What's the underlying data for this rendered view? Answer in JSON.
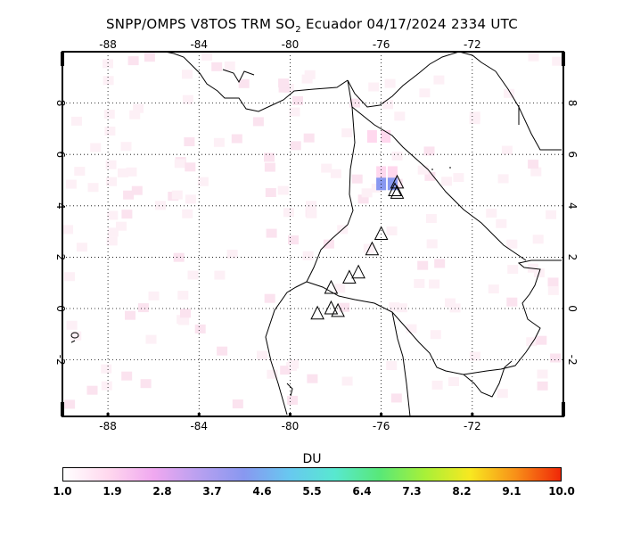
{
  "title": {
    "prefix": "SNPP/OMPS V8TOS TRM SO",
    "sub": "2",
    "suffix": " Ecuador 04/17/2024 2334 UTC"
  },
  "map": {
    "region": "Ecuador",
    "lon_range": [
      -90,
      -68
    ],
    "lat_range": [
      -4.2,
      10
    ],
    "lon_ticks": [
      "-88",
      "-84",
      "-80",
      "-76",
      "-72"
    ],
    "lat_ticks": [
      "8",
      "6",
      "4",
      "2",
      "0",
      "-2"
    ],
    "grid": true,
    "volcano_icon": "triangle-icon",
    "volcanoes": [
      {
        "lon": -75.3,
        "lat": 4.9
      },
      {
        "lon": -75.4,
        "lat": 4.6
      },
      {
        "lon": -75.3,
        "lat": 4.5
      },
      {
        "lon": -76.0,
        "lat": 2.9
      },
      {
        "lon": -76.4,
        "lat": 2.3
      },
      {
        "lon": -77.0,
        "lat": 1.4
      },
      {
        "lon": -77.4,
        "lat": 1.2
      },
      {
        "lon": -78.2,
        "lat": 0.8
      },
      {
        "lon": -78.2,
        "lat": -0.0
      },
      {
        "lon": -77.9,
        "lat": -0.1
      },
      {
        "lon": -78.8,
        "lat": -0.2
      }
    ],
    "so2_patches": [
      {
        "lon": -76.4,
        "lat": 6.7,
        "du": 1.6
      },
      {
        "lon": -75.8,
        "lat": 6.7,
        "du": 1.6
      },
      {
        "lon": -76.0,
        "lat": 5.3,
        "du": 2.1
      },
      {
        "lon": -75.5,
        "lat": 5.3,
        "du": 2.1
      },
      {
        "lon": -76.0,
        "lat": 4.85,
        "du": 4.3
      },
      {
        "lon": -75.5,
        "lat": 4.85,
        "du": 4.3
      }
    ]
  },
  "colorbar": {
    "unit": "DU",
    "min": 1.0,
    "max": 10.0,
    "labels": [
      "1.0",
      "1.9",
      "2.8",
      "3.7",
      "4.6",
      "5.5",
      "6.4",
      "7.3",
      "8.2",
      "9.1",
      "10.0"
    ],
    "colors": [
      "#ffffff",
      "#ffd8ee",
      "#f0a8f0",
      "#b8a0f0",
      "#8898f0",
      "#68c8f0",
      "#58e8d0",
      "#58e878",
      "#a8f038",
      "#f8e820",
      "#f89018",
      "#f02808"
    ]
  }
}
